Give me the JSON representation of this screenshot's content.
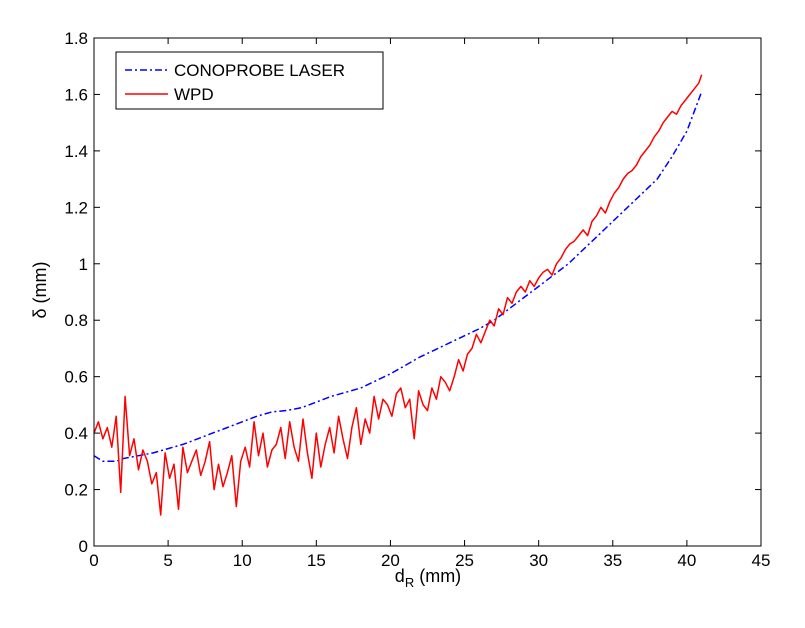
{
  "chart_data": {
    "type": "line",
    "title": "",
    "xlabel": {
      "main": "d",
      "sub": "R",
      "unit": " (mm)"
    },
    "ylabel": "δ (mm)",
    "xlim": [
      0,
      45
    ],
    "ylim": [
      0,
      1.8
    ],
    "xticks": [
      0,
      5,
      10,
      15,
      20,
      25,
      30,
      35,
      40,
      45
    ],
    "yticks": [
      0,
      0.2,
      0.4,
      0.6,
      0.8,
      1,
      1.2,
      1.4,
      1.6,
      1.8
    ],
    "xtick_labels": [
      "0",
      "5",
      "10",
      "15",
      "20",
      "25",
      "30",
      "35",
      "40",
      "45"
    ],
    "ytick_labels": [
      "0",
      "0.2",
      "0.4",
      "0.6",
      "0.8",
      "1",
      "1.2",
      "1.4",
      "1.6",
      "1.8"
    ],
    "grid": false,
    "legend_position": "top-left",
    "series": [
      {
        "name": "CONOPROBE LASER",
        "color": "#0000ff",
        "style": "dash-dot",
        "x": [
          0,
          0.3,
          0.6,
          1,
          1.5,
          2,
          3,
          4,
          5,
          6,
          7,
          8,
          9,
          10,
          11,
          12,
          13,
          14,
          15,
          16,
          17,
          18,
          19,
          20,
          21,
          22,
          23,
          24,
          25,
          26,
          27,
          28,
          29,
          30,
          31,
          32,
          33,
          34,
          35,
          36,
          37,
          38,
          39,
          40,
          41
        ],
        "y": [
          0.32,
          0.31,
          0.3,
          0.3,
          0.3,
          0.31,
          0.32,
          0.33,
          0.345,
          0.36,
          0.38,
          0.4,
          0.42,
          0.44,
          0.46,
          0.475,
          0.48,
          0.49,
          0.51,
          0.53,
          0.545,
          0.56,
          0.585,
          0.61,
          0.64,
          0.67,
          0.695,
          0.72,
          0.745,
          0.77,
          0.8,
          0.84,
          0.88,
          0.92,
          0.96,
          1.0,
          1.05,
          1.1,
          1.15,
          1.2,
          1.25,
          1.3,
          1.38,
          1.47,
          1.61
        ]
      },
      {
        "name": "WPD",
        "color": "#ff0000",
        "style": "solid",
        "x": [
          0,
          0.3,
          0.6,
          0.9,
          1.2,
          1.5,
          1.8,
          2.1,
          2.4,
          2.7,
          3.0,
          3.3,
          3.6,
          3.9,
          4.2,
          4.5,
          4.8,
          5.1,
          5.4,
          5.7,
          6.0,
          6.3,
          6.6,
          6.9,
          7.2,
          7.5,
          7.8,
          8.1,
          8.4,
          8.7,
          9.0,
          9.3,
          9.6,
          9.9,
          10.2,
          10.5,
          10.8,
          11.1,
          11.4,
          11.7,
          12.0,
          12.3,
          12.6,
          12.9,
          13.2,
          13.5,
          13.8,
          14.1,
          14.4,
          14.7,
          15.0,
          15.3,
          15.6,
          15.9,
          16.2,
          16.5,
          16.8,
          17.1,
          17.4,
          17.7,
          18.0,
          18.3,
          18.6,
          18.9,
          19.2,
          19.5,
          19.8,
          20.1,
          20.4,
          20.7,
          21.0,
          21.3,
          21.6,
          21.9,
          22.2,
          22.5,
          22.8,
          23.1,
          23.4,
          23.7,
          24.0,
          24.3,
          24.6,
          24.9,
          25.2,
          25.5,
          25.8,
          26.1,
          26.4,
          26.7,
          27.0,
          27.3,
          27.6,
          27.9,
          28.2,
          28.5,
          28.8,
          29.1,
          29.4,
          29.7,
          30.0,
          30.3,
          30.6,
          30.9,
          31.2,
          31.5,
          31.8,
          32.1,
          32.4,
          32.7,
          33.0,
          33.3,
          33.6,
          33.9,
          34.2,
          34.5,
          34.8,
          35.1,
          35.4,
          35.7,
          36.0,
          36.3,
          36.6,
          36.9,
          37.2,
          37.5,
          37.8,
          38.1,
          38.4,
          38.7,
          39.0,
          39.3,
          39.6,
          39.9,
          40.2,
          40.5,
          40.8,
          41.0
        ],
        "y": [
          0.4,
          0.44,
          0.38,
          0.42,
          0.35,
          0.46,
          0.19,
          0.53,
          0.32,
          0.38,
          0.27,
          0.34,
          0.3,
          0.22,
          0.26,
          0.11,
          0.33,
          0.24,
          0.29,
          0.13,
          0.35,
          0.26,
          0.3,
          0.34,
          0.25,
          0.3,
          0.37,
          0.2,
          0.29,
          0.21,
          0.26,
          0.32,
          0.14,
          0.3,
          0.35,
          0.28,
          0.44,
          0.32,
          0.4,
          0.28,
          0.34,
          0.36,
          0.42,
          0.31,
          0.44,
          0.35,
          0.3,
          0.45,
          0.33,
          0.24,
          0.4,
          0.28,
          0.36,
          0.42,
          0.33,
          0.46,
          0.38,
          0.31,
          0.42,
          0.49,
          0.36,
          0.45,
          0.4,
          0.53,
          0.45,
          0.52,
          0.5,
          0.46,
          0.54,
          0.56,
          0.49,
          0.52,
          0.38,
          0.55,
          0.5,
          0.48,
          0.56,
          0.52,
          0.6,
          0.58,
          0.55,
          0.6,
          0.66,
          0.62,
          0.68,
          0.7,
          0.75,
          0.72,
          0.76,
          0.8,
          0.78,
          0.84,
          0.82,
          0.88,
          0.86,
          0.9,
          0.92,
          0.9,
          0.94,
          0.92,
          0.95,
          0.97,
          0.98,
          0.96,
          1.0,
          1.02,
          1.05,
          1.07,
          1.08,
          1.1,
          1.12,
          1.1,
          1.15,
          1.17,
          1.2,
          1.18,
          1.22,
          1.25,
          1.27,
          1.3,
          1.32,
          1.33,
          1.35,
          1.38,
          1.4,
          1.42,
          1.45,
          1.47,
          1.5,
          1.52,
          1.54,
          1.53,
          1.56,
          1.58,
          1.6,
          1.62,
          1.64,
          1.67
        ]
      }
    ]
  }
}
